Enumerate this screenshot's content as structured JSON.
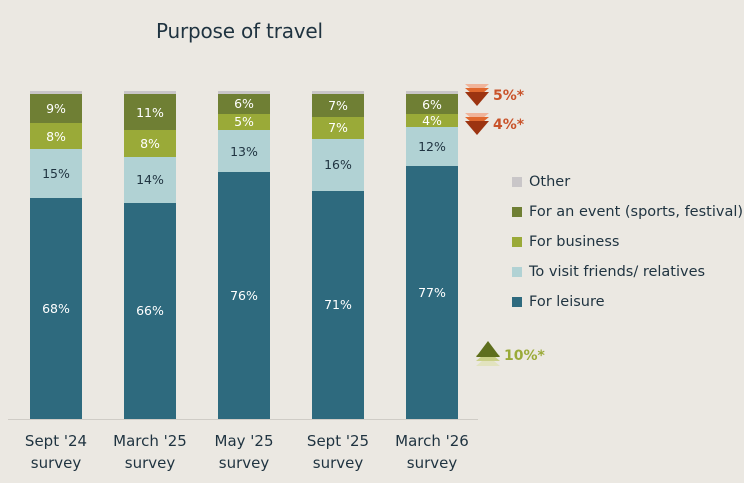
{
  "chart_data": {
    "type": "bar",
    "stacked": true,
    "title": "Purpose of travel",
    "xlabel": "",
    "ylabel": "",
    "ylim": [
      0,
      100
    ],
    "grid": false,
    "legend_position": "right",
    "categories": [
      "Sept '24 survey",
      "March '25 survey",
      "May '25 survey",
      "Sept '25 survey",
      "March '26 survey"
    ],
    "category_lines": [
      [
        "Sept '24",
        "survey"
      ],
      [
        "March '25",
        "survey"
      ],
      [
        "May '25",
        "survey"
      ],
      [
        "Sept '25",
        "survey"
      ],
      [
        "March '26",
        "survey"
      ]
    ],
    "series": [
      {
        "name": "For leisure",
        "color": "#2e6a7e",
        "label_color": "#ffffff",
        "values": [
          68,
          66,
          76,
          71,
          77
        ]
      },
      {
        "name": "To visit friends/ relatives",
        "color": "#b1d2d4",
        "label_color": "#1f3340",
        "values": [
          15,
          14,
          13,
          16,
          12
        ]
      },
      {
        "name": "For business",
        "color": "#9aaa38",
        "label_color": "#ffffff",
        "values": [
          8,
          8,
          5,
          7,
          4
        ]
      },
      {
        "name": "For an event (sports, festival)",
        "color": "#6f7f34",
        "label_color": "#ffffff",
        "values": [
          9,
          11,
          6,
          7,
          6
        ]
      },
      {
        "name": "Other",
        "color": "#c9c6c8",
        "label_color": "#1f3340",
        "values": [
          1,
          1,
          1,
          1,
          1
        ]
      }
    ],
    "data_labels": [
      [
        "68%",
        "15%",
        "8%",
        "9%",
        ""
      ],
      [
        "66%",
        "14%",
        "8%",
        "11%",
        ""
      ],
      [
        "76%",
        "13%",
        "5%",
        "6%",
        ""
      ],
      [
        "71%",
        "16%",
        "7%",
        "7%",
        ""
      ],
      [
        "77%",
        "12%",
        "4%",
        "6%",
        ""
      ]
    ],
    "annotations": [
      {
        "series": "For an event (sports, festival)",
        "direction": "down",
        "text": "5%*",
        "color": "#c9532a"
      },
      {
        "series": "For business",
        "direction": "down",
        "text": "4%*",
        "color": "#c9532a"
      },
      {
        "series": "For leisure",
        "direction": "up",
        "text": "10%*",
        "color": "#9aaa38"
      }
    ],
    "legend": [
      "Other",
      "For an event (sports, festival)",
      "For business",
      "To visit friends/ relatives",
      "For leisure"
    ]
  },
  "legend_colors": {
    "Other": "#c9c6c8",
    "For an event (sports, festival)": "#6f7f34",
    "For business": "#9aaa38",
    "To visit friends/ relatives": "#b1d2d4",
    "For leisure": "#2e6a7e"
  }
}
